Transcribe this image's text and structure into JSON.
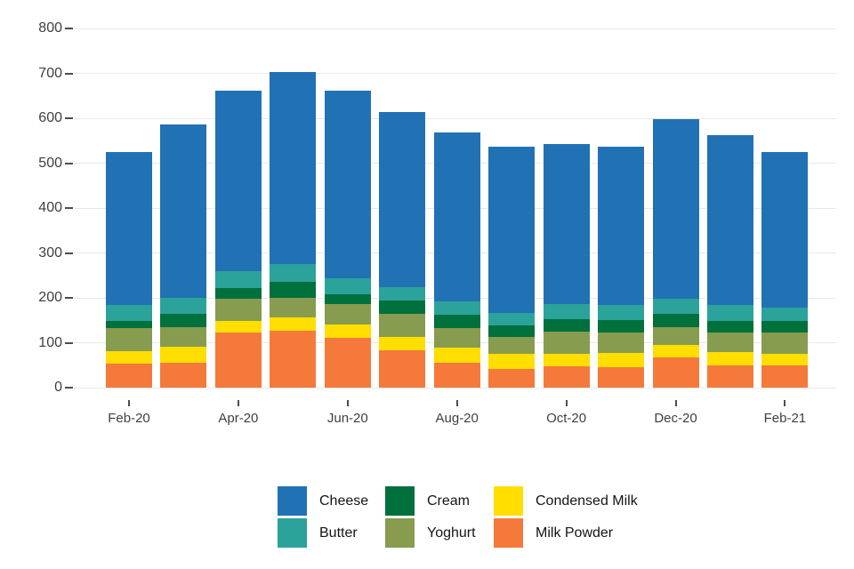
{
  "chart_data": {
    "type": "bar",
    "stacked": true,
    "title": "",
    "xlabel": "",
    "ylabel": "",
    "categories": [
      "Feb-20",
      "Mar-20",
      "Apr-20",
      "May-20",
      "Jun-20",
      "Jul-20",
      "Aug-20",
      "Sep-20",
      "Oct-20",
      "Nov-20",
      "Dec-20",
      "Jan-21",
      "Feb-21"
    ],
    "x_tick_labels": [
      "Feb-20",
      "Apr-20",
      "Jun-20",
      "Aug-20",
      "Oct-20",
      "Dec-20",
      "Feb-21"
    ],
    "x_tick_category_indexes": [
      0,
      2,
      4,
      6,
      8,
      10,
      12
    ],
    "series": [
      {
        "name": "Milk Powder",
        "color": "#F5793B",
        "values": [
          53,
          56,
          122,
          126,
          110,
          84,
          56,
          42,
          48,
          46,
          67,
          50,
          50
        ]
      },
      {
        "name": "Condensed Milk",
        "color": "#FFDE00",
        "values": [
          28,
          35,
          27,
          31,
          31,
          29,
          34,
          33,
          27,
          31,
          29,
          30,
          25
        ]
      },
      {
        "name": "Yoghurt",
        "color": "#879C4F",
        "values": [
          51,
          43,
          49,
          43,
          45,
          51,
          42,
          38,
          49,
          45,
          38,
          42,
          48
        ]
      },
      {
        "name": "Cream",
        "color": "#00703C",
        "values": [
          17,
          30,
          23,
          35,
          22,
          30,
          30,
          26,
          29,
          29,
          30,
          27,
          26
        ]
      },
      {
        "name": "Butter",
        "color": "#2BA39B",
        "values": [
          35,
          37,
          38,
          40,
          36,
          29,
          30,
          28,
          33,
          33,
          35,
          35,
          30
        ]
      },
      {
        "name": "Cheese",
        "color": "#2171B5",
        "values": [
          341,
          385,
          402,
          428,
          417,
          391,
          376,
          369,
          357,
          352,
          399,
          378,
          345
        ]
      }
    ],
    "stack_order_note": "series listed bottom-to-top; bar totals: 525,586,661,703,661,614,568,536,543,536,598,562,524",
    "y_axis": {
      "min": 0,
      "max": 800,
      "step": 100,
      "tick_labels": [
        "0",
        "100",
        "200",
        "300",
        "400",
        "500",
        "600",
        "700",
        "800"
      ]
    },
    "grid": true,
    "legend": {
      "position": "bottom",
      "columns": [
        [
          "Cheese",
          "Butter"
        ],
        [
          "Cream",
          "Yoghurt"
        ],
        [
          "Condensed Milk",
          "Milk Powder"
        ]
      ]
    },
    "colors": {
      "grid": "#e8e8e8",
      "axis_text": "#3f3f3f",
      "tick_mark": "#4d4d4d",
      "background": "#ffffff"
    }
  }
}
